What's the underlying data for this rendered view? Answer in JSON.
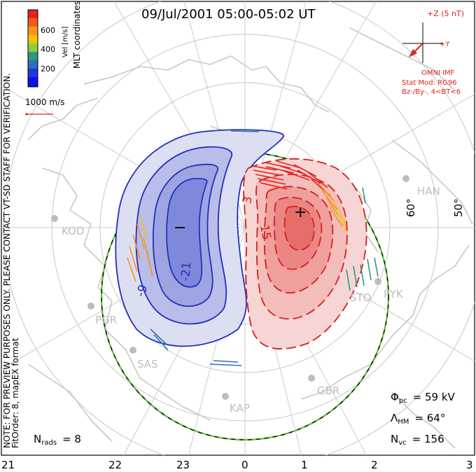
{
  "title": "09/Jul/2001 05:00-05:02 UT",
  "velocity_scale": {
    "label": "Vel [m/s]",
    "ticks": [
      "600",
      "400",
      "200"
    ],
    "colors": [
      "#e8201c",
      "#f15b1a",
      "#f7931e",
      "#f5c400",
      "#8ccf3b",
      "#2f9a7a",
      "#2e6fb8",
      "#2436d8",
      "#0a12f2"
    ]
  },
  "coordinates_label": "MLT coordinates",
  "vector_scale": "1000 m/s",
  "preview_note": "NOTE: FOR PREVIEW PURPOSES ONLY. PLEASE CONTACT VT-SD STAFF FOR VERIFICATION.",
  "fit_label": "FitOrder: 8, mapEX format",
  "imf": {
    "z_label": "+Z (5 nT)",
    "y_label": "+Y",
    "source": "OMNI IMF",
    "model": "Stat Mod: RG96",
    "condition": "Bz-/By-, 4<BT<6"
  },
  "latitude_labels": [
    "60°",
    "50°"
  ],
  "mlt_labels": [
    "21",
    "22",
    "23",
    "0",
    "1",
    "2",
    "3"
  ],
  "sites": [
    "KOD",
    "PGR",
    "SAS",
    "KAP",
    "GBR",
    "PYK",
    "STO",
    "HAN"
  ],
  "contour_labels": [
    "-21",
    "-9",
    "3",
    "15"
  ],
  "extrema": {
    "min": "−",
    "max": "+"
  },
  "stats": {
    "nrads_label": "N",
    "nrads_sub": "rads",
    "nrads_value": "= 8",
    "phi_label": "Φ",
    "phi_sub": "pc",
    "phi_value": "= 59 kV",
    "lambda_label": "Λ",
    "lambda_sub": "HM",
    "lambda_value": "= 64°",
    "nvc_label": "N",
    "nvc_sub": "vc",
    "nvc_value": "= 156"
  },
  "colors": {
    "negative": "#2430b8",
    "positive": "#d61f1f",
    "imf_arrow": "#e2231a",
    "coastline": "#c8c8c8",
    "boundary": "#5fbf3f"
  }
}
